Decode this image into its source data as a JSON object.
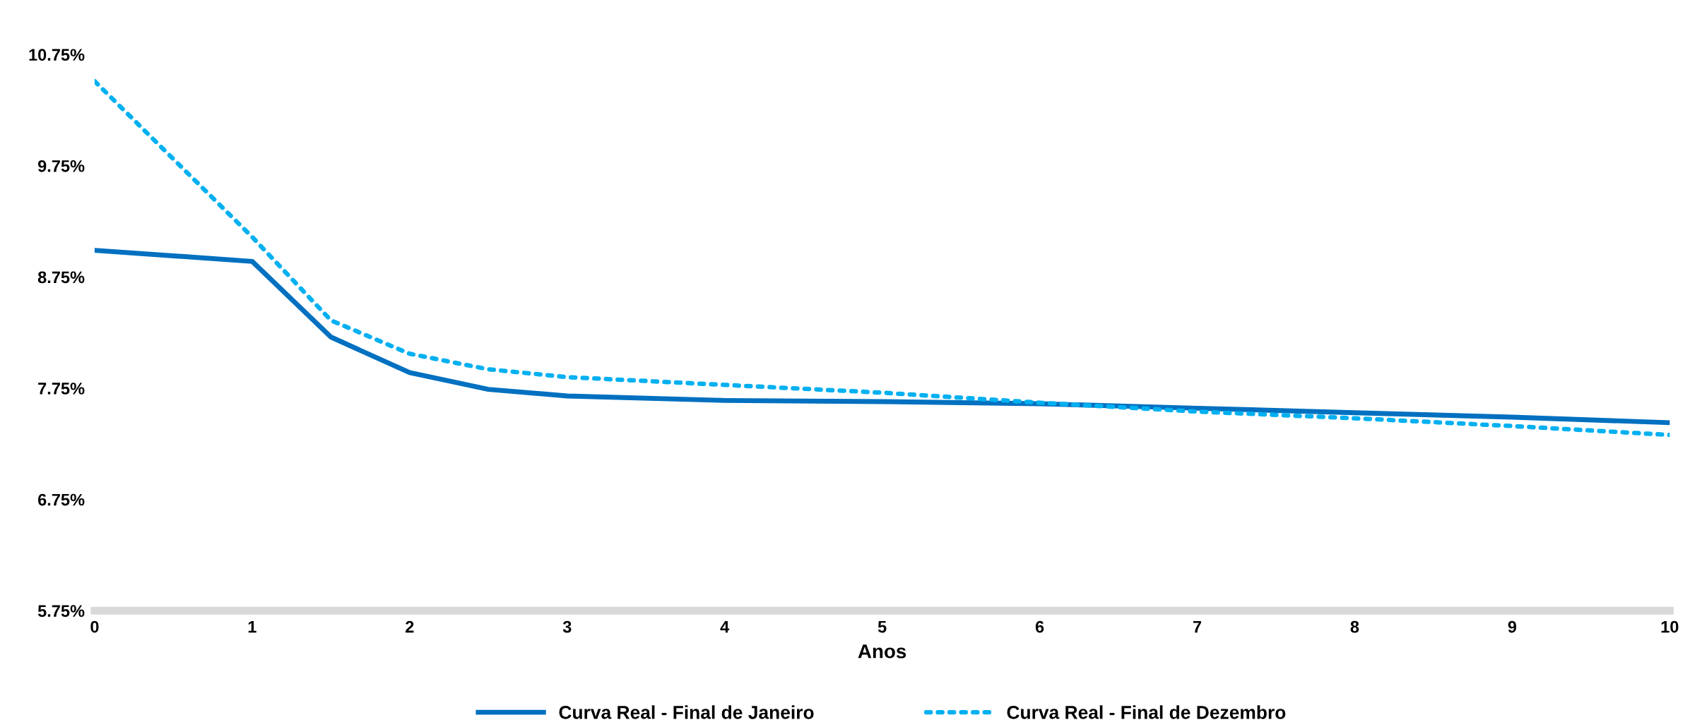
{
  "chart_data": {
    "type": "line",
    "xlabel": "Anos",
    "x": [
      0,
      1,
      1.5,
      2,
      2.5,
      3,
      4,
      5,
      6,
      7,
      8,
      9,
      10
    ],
    "series": [
      {
        "name": "Curva Real - Final de Janeiro",
        "color": "#0070c0",
        "line_style": "solid",
        "values": [
          8.99,
          8.89,
          8.21,
          7.89,
          7.74,
          7.68,
          7.64,
          7.63,
          7.61,
          7.57,
          7.53,
          7.49,
          7.44
        ]
      },
      {
        "name": "Curva Real - Final de Dezembro",
        "color": "#00b0f0",
        "line_style": "dotted",
        "values": [
          10.51,
          9.11,
          8.36,
          8.06,
          7.92,
          7.85,
          7.78,
          7.71,
          7.62,
          7.54,
          7.48,
          7.41,
          7.33
        ]
      }
    ],
    "xlim": [
      0,
      10
    ],
    "xticks": [
      0,
      1,
      2,
      3,
      4,
      5,
      6,
      7,
      8,
      9,
      10
    ],
    "ylim": [
      5.75,
      10.75
    ],
    "yticks": [
      {
        "value": 5.75,
        "label": "5.75%"
      },
      {
        "value": 6.75,
        "label": "6.75%"
      },
      {
        "value": 7.75,
        "label": "7.75%"
      },
      {
        "value": 8.75,
        "label": "8.75%"
      },
      {
        "value": 9.75,
        "label": "9.75%"
      },
      {
        "value": 10.75,
        "label": "10.75%"
      }
    ],
    "grid": false,
    "legend": "bottom",
    "marker": "none"
  }
}
